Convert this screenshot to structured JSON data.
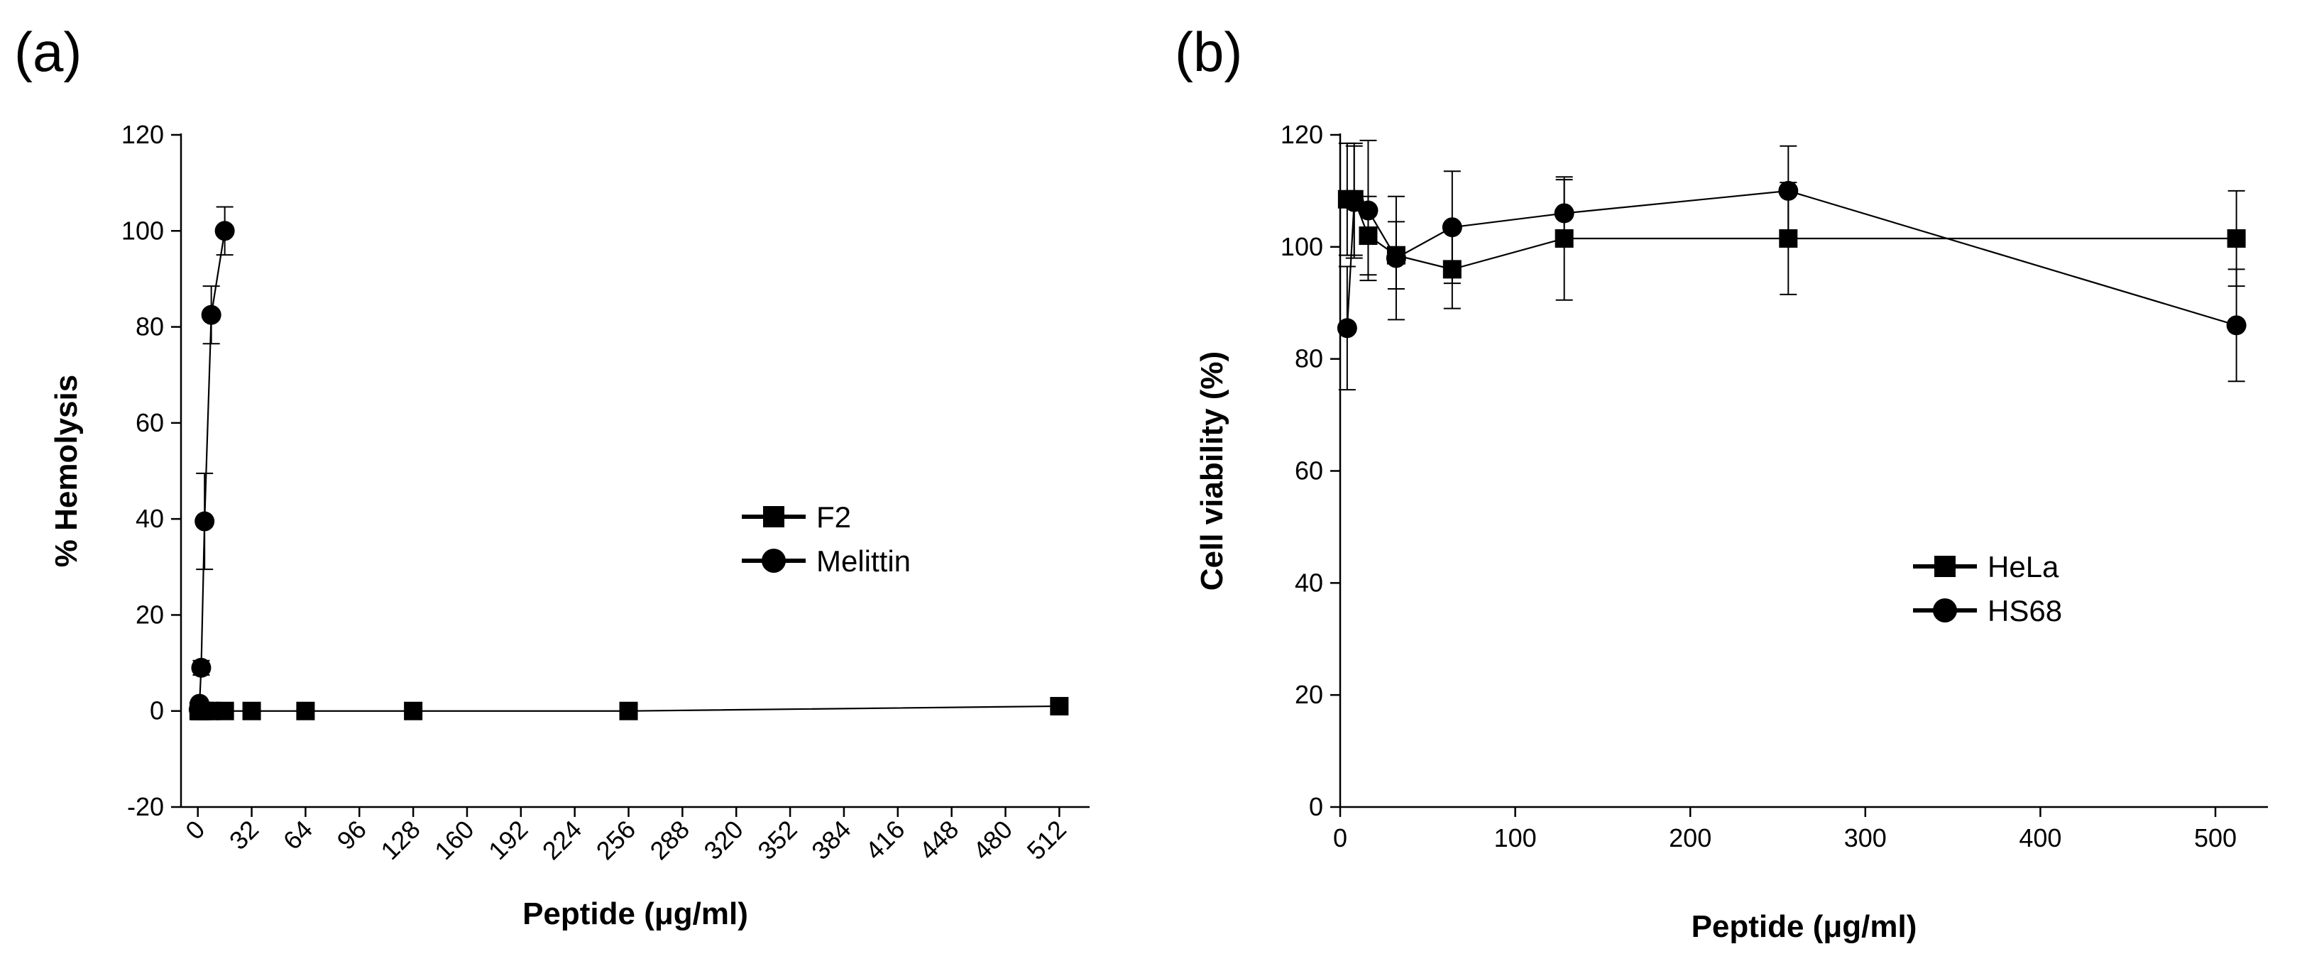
{
  "panels": [
    {
      "letter": "(a)"
    },
    {
      "letter": "(b)"
    }
  ],
  "chart_data": [
    {
      "type": "scatter",
      "title": "",
      "xlabel": "Peptide (μg/ml)",
      "ylabel": "% Hemolysis",
      "xlim": [
        -10,
        530
      ],
      "ylim": [
        -20,
        120
      ],
      "x_ticks": [
        0,
        32,
        64,
        96,
        128,
        160,
        192,
        224,
        256,
        288,
        320,
        352,
        384,
        416,
        448,
        480,
        512
      ],
      "y_ticks": [
        -20,
        0,
        20,
        40,
        60,
        80,
        100,
        120
      ],
      "x_tick_rotation": -45,
      "legend": {
        "placement": "center-right"
      },
      "series": [
        {
          "name": "F2",
          "marker": "square",
          "x": [
            0.5,
            1,
            2,
            4,
            8,
            16,
            32,
            64,
            128,
            256,
            512
          ],
          "y": [
            0.0,
            0.0,
            0.0,
            0.0,
            0.0,
            0.0,
            0.0,
            0.0,
            0.0,
            0.0,
            1.0
          ],
          "error": [
            0,
            0,
            0,
            0,
            0,
            0,
            0,
            0,
            0,
            0,
            0
          ]
        },
        {
          "name": "Melittin",
          "marker": "circle",
          "x": [
            0.5,
            1,
            2,
            4,
            8,
            16
          ],
          "y": [
            0.3,
            1.5,
            9.0,
            39.5,
            82.5,
            100.0
          ],
          "error": [
            0,
            0.5,
            1.5,
            10,
            6,
            5
          ]
        }
      ]
    },
    {
      "type": "scatter",
      "title": "",
      "xlabel": "Peptide (μg/ml)",
      "ylabel": "Cell viability (%)",
      "xlim": [
        0,
        530
      ],
      "ylim": [
        0,
        120
      ],
      "x_ticks": [
        0,
        100,
        200,
        300,
        400,
        500
      ],
      "y_ticks": [
        0,
        20,
        40,
        60,
        80,
        100,
        120
      ],
      "legend": {
        "placement": "center-right"
      },
      "series": [
        {
          "name": "HeLa",
          "marker": "square",
          "x": [
            4,
            8,
            16,
            32,
            64,
            128,
            256,
            512
          ],
          "y": [
            108.5,
            108.5,
            102,
            98.5,
            96,
            101.5,
            101.5,
            101.5
          ],
          "error": [
            10,
            10,
            7,
            6,
            7,
            11,
            10,
            8.5
          ]
        },
        {
          "name": "HS68",
          "marker": "circle",
          "x": [
            4,
            8,
            16,
            32,
            64,
            128,
            256,
            512
          ],
          "y": [
            85.5,
            108,
            106.5,
            98,
            103.5,
            106,
            110,
            86
          ],
          "error": [
            11,
            10,
            12.5,
            11,
            10,
            6,
            8,
            10
          ]
        }
      ]
    }
  ]
}
